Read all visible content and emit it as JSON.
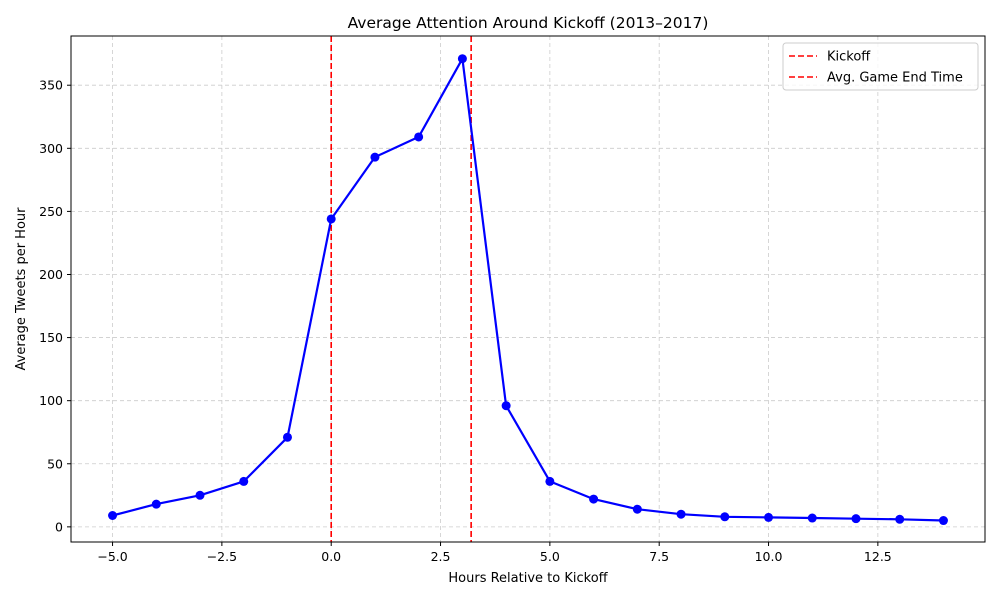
{
  "chart_data": {
    "type": "line",
    "title": "Average Attention Around Kickoff (2013–2017)",
    "xlabel": "Hours Relative to Kickoff",
    "ylabel": "Average Tweets per Hour",
    "xlim": [
      -5.95,
      14.95
    ],
    "ylim": [
      -12,
      389
    ],
    "x_ticks": [
      -5.0,
      -2.5,
      0.0,
      2.5,
      5.0,
      7.5,
      10.0,
      12.5
    ],
    "x_tick_labels": [
      "−5.0",
      "−2.5",
      "0.0",
      "2.5",
      "5.0",
      "7.5",
      "10.0",
      "12.5"
    ],
    "y_ticks": [
      0,
      50,
      100,
      150,
      200,
      250,
      300,
      350
    ],
    "y_tick_labels": [
      "0",
      "50",
      "100",
      "150",
      "200",
      "250",
      "300",
      "350"
    ],
    "grid": true,
    "legend_position": "top-right",
    "series": [
      {
        "color": "#0000ff",
        "marker": "circle",
        "x": [
          -5,
          -4,
          -3,
          -2,
          -1,
          0,
          1,
          2,
          3,
          4,
          5,
          6,
          7,
          8,
          9,
          10,
          11,
          12,
          13,
          14
        ],
        "y": [
          9,
          18,
          25,
          36,
          71,
          244,
          293,
          309,
          371,
          96,
          36,
          22,
          14,
          10,
          8,
          7.5,
          7,
          6.5,
          6,
          5
        ]
      }
    ],
    "vlines": [
      {
        "name": "Kickoff",
        "x": 0.0,
        "color": "#ff0000",
        "style": "dashed"
      },
      {
        "name": "Avg. Game End Time",
        "x": 3.2,
        "color": "#ff0000",
        "style": "dashed"
      }
    ]
  }
}
